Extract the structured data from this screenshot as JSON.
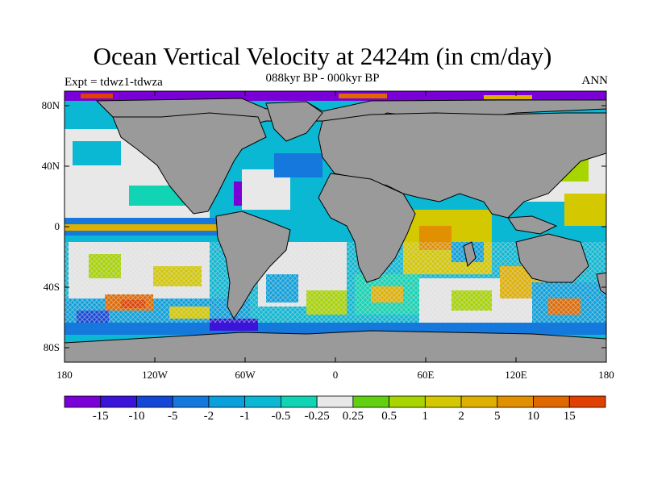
{
  "map": {
    "title": "Ocean Vertical Velocity at 2424m (in cm/day)",
    "subtitle": "088kyr BP - 000kyr BP",
    "left_label": "Expt = tdwz1-tdwza",
    "right_label": "ANN",
    "lat_labels": [
      "80N",
      "40N",
      "0",
      "40S",
      "80S"
    ],
    "lon_labels": [
      "180",
      "120W",
      "60W",
      "0",
      "60E",
      "120E",
      "180"
    ],
    "land_color": "#9a9a9a",
    "colorbar": {
      "colors": [
        "#7a00d8",
        "#3a14d8",
        "#1446d8",
        "#1478dc",
        "#0aa0dc",
        "#0ab8d4",
        "#10d4b4",
        "#e8e8e8",
        "#60d010",
        "#a8d400",
        "#d4c800",
        "#e0b000",
        "#e09000",
        "#e06800",
        "#e04000"
      ],
      "labels": [
        "-15",
        "-10",
        "-5",
        "-2",
        "-1",
        "-0.5",
        "-0.25",
        "0.25",
        "0.5",
        "1",
        "2",
        "5",
        "10",
        "15"
      ]
    }
  }
}
